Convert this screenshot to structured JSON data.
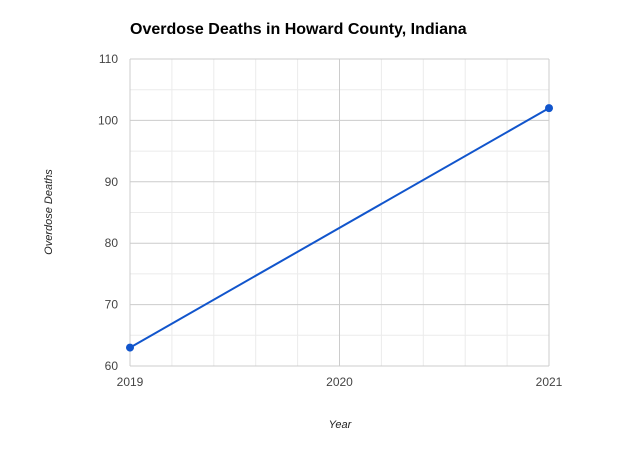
{
  "chart_data": {
    "type": "line",
    "title": "Overdose Deaths in Howard County, Indiana",
    "xlabel": "Year",
    "ylabel": "Overdose Deaths",
    "x": [
      2019,
      2021
    ],
    "x_ticks": [
      "2019",
      "2020",
      "2021"
    ],
    "xlim": [
      2019,
      2021
    ],
    "ylim": [
      60,
      110
    ],
    "y_ticks": [
      60,
      70,
      80,
      90,
      100,
      110
    ],
    "series": [
      {
        "values": [
          63,
          102
        ],
        "color": "#1155cc"
      }
    ],
    "grid": true,
    "legend": "none"
  }
}
